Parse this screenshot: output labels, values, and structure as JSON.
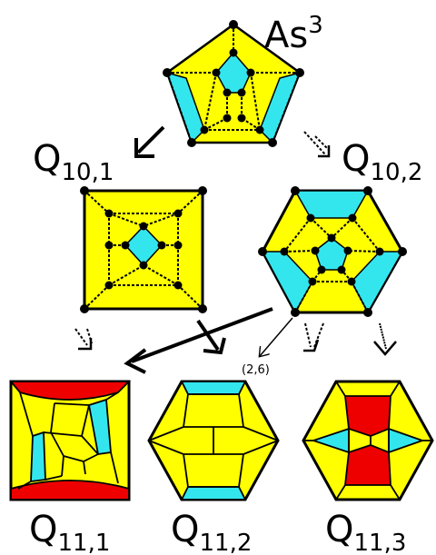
{
  "labels": {
    "top": {
      "base": "As",
      "sup": "3"
    },
    "q10_1": {
      "base": "Q",
      "sub": "10,1"
    },
    "q10_2": {
      "base": "Q",
      "sub": "10,2"
    },
    "q11_1": {
      "base": "Q",
      "sub": "11,1"
    },
    "q11_2": {
      "base": "Q",
      "sub": "11,2"
    },
    "q11_3": {
      "base": "Q",
      "sub": "11,3"
    },
    "arrow_note": "(2,6)"
  },
  "colors": {
    "yellow": "#ffff00",
    "cyan": "#33e6ee",
    "red": "#ee0000",
    "black": "#000000"
  }
}
